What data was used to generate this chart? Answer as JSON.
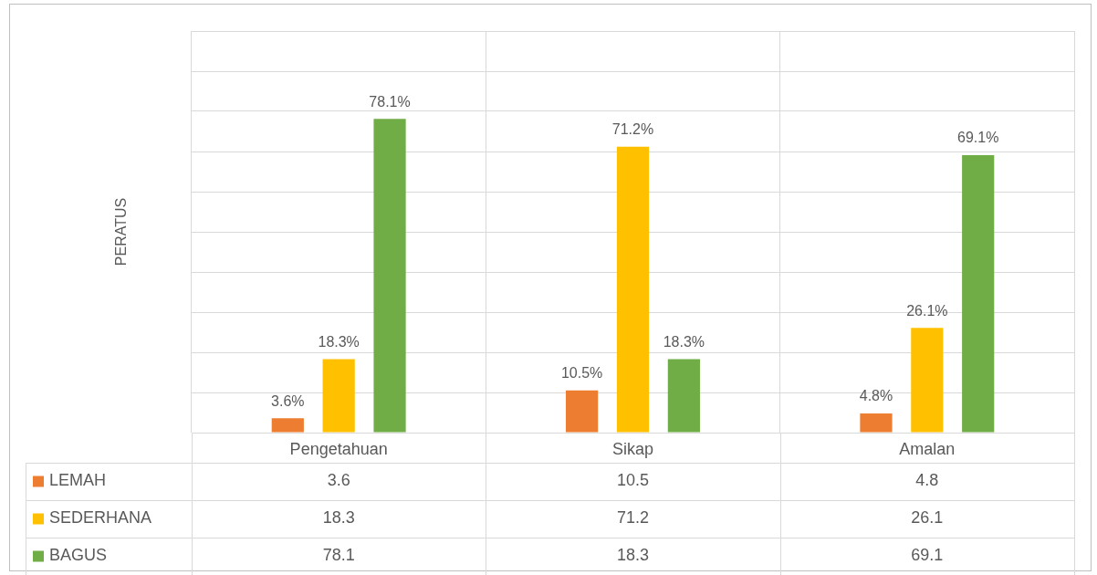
{
  "chart_data": {
    "type": "bar",
    "ylabel": "PERATUS",
    "categories": [
      "Pengetahuan",
      "Sikap",
      "Amalan"
    ],
    "series": [
      {
        "name": "LEMAH",
        "color": "#ed7d31",
        "values": [
          3.6,
          10.5,
          4.8
        ]
      },
      {
        "name": "SEDERHANA",
        "color": "#ffc000",
        "values": [
          18.3,
          71.2,
          26.1
        ]
      },
      {
        "name": "BAGUS",
        "color": "#70ad47",
        "values": [
          78.1,
          18.3,
          69.1
        ]
      }
    ],
    "annotations": [
      "3.6%",
      "10.5%",
      "4.8%",
      "18.3%",
      "71.2%",
      "26.1%",
      "78.1%",
      "18.3%",
      "69.1%"
    ],
    "ylim": [
      0,
      100
    ],
    "tick_labels": "x",
    "grid": true,
    "legend": "bottom",
    "data_labels": true
  }
}
